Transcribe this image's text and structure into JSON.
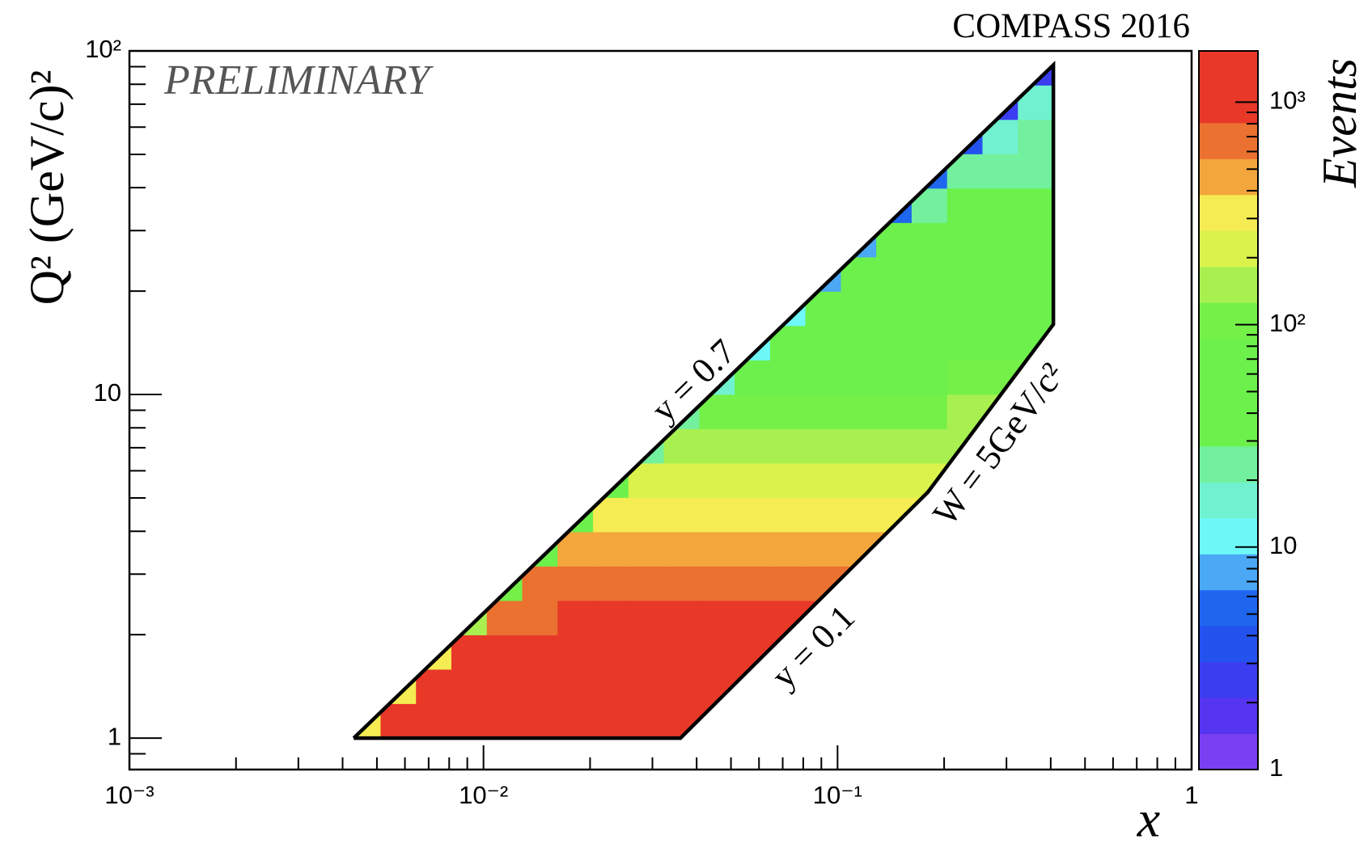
{
  "chart_data": {
    "type": "heatmap",
    "title": "COMPASS 2016",
    "watermark": "PRELIMINARY",
    "x_label": "x",
    "y_label": "Q² (GeV/c)²",
    "colorbar_label": "Events",
    "annotations": [
      "y = 0.7",
      "y = 0.1",
      "W = 5GeV/c²"
    ],
    "xlog": true,
    "ylog": true,
    "zlog": true,
    "xlim": [
      0.001,
      1
    ],
    "ylim": [
      0.81,
      100
    ],
    "zlim": [
      1,
      1700
    ],
    "xticks": [
      {
        "value": 0.001,
        "label": "10⁻³"
      },
      {
        "value": 0.01,
        "label": "10⁻²"
      },
      {
        "value": 0.1,
        "label": "10⁻¹"
      },
      1
    ],
    "yticks": [
      1,
      10,
      {
        "value": 100,
        "label": "10²"
      }
    ],
    "zticks": [
      1,
      10,
      {
        "value": 100,
        "label": "10²"
      },
      {
        "value": 1000,
        "label": "10³"
      }
    ],
    "xminor": [
      0.002,
      0.003,
      0.004,
      0.005,
      0.006,
      0.007,
      0.008,
      0.009,
      0.02,
      0.03,
      0.04,
      0.05,
      0.06,
      0.07,
      0.08,
      0.09,
      0.2,
      0.3,
      0.4,
      0.5,
      0.6,
      0.7,
      0.8,
      0.9
    ],
    "yminor": [
      0.9,
      2,
      3,
      4,
      5,
      6,
      7,
      8,
      9,
      20,
      30,
      40,
      50,
      60,
      70,
      80,
      90
    ],
    "zminor": [
      2,
      3,
      4,
      5,
      6,
      7,
      8,
      9,
      20,
      30,
      40,
      50,
      60,
      70,
      80,
      90,
      200,
      300,
      400,
      500,
      600,
      700,
      800,
      900
    ],
    "palette": [
      "#7b3ff2",
      "#5535f0",
      "#3a3df0",
      "#2452ee",
      "#1e66ee",
      "#4aa8f4",
      "#6ef8f8",
      "#70f2d0",
      "#72f09e",
      "#6cf04c",
      "#6cf04c",
      "#6cf04c",
      "#74f048",
      "#a8f050",
      "#daf24c",
      "#f4ec52",
      "#f2a63c",
      "#eb7130",
      "#e73828",
      "#e73828"
    ],
    "xbins": [
      0.004074,
      0.005129,
      0.006457,
      0.008128,
      0.010233,
      0.012882,
      0.016218,
      0.020417,
      0.025704,
      0.032359,
      0.040738,
      0.051286,
      0.064565,
      0.081283,
      0.102329,
      0.128825,
      0.162181,
      0.204174,
      0.25704,
      0.323594,
      0.40738
    ],
    "ybins": [
      1,
      1.2589,
      1.5849,
      1.9953,
      2.5119,
      3.1623,
      3.9811,
      5.0119,
      6.3096,
      7.9433,
      10,
      12.589,
      15.849,
      19.953,
      25.119,
      31.623,
      39.811,
      50.119,
      63.096,
      79.433,
      100
    ],
    "z": [
      [
        280,
        1400,
        1400,
        1400,
        1400,
        1400,
        1400,
        1400,
        1400,
        1400,
        1400,
        null,
        null,
        null,
        null,
        null,
        null,
        null,
        null,
        null
      ],
      [
        null,
        280,
        1400,
        1400,
        1400,
        1400,
        1400,
        1400,
        1400,
        1400,
        1400,
        1400,
        null,
        null,
        null,
        null,
        null,
        null,
        null,
        null
      ],
      [
        null,
        null,
        280,
        1400,
        1400,
        1400,
        1400,
        1400,
        1400,
        1400,
        1400,
        1400,
        1400,
        null,
        null,
        null,
        null,
        null,
        null,
        null
      ],
      [
        null,
        null,
        null,
        150,
        780,
        800,
        1400,
        1400,
        1400,
        1400,
        1400,
        1400,
        1400,
        1400,
        null,
        null,
        null,
        null,
        null,
        null
      ],
      [
        null,
        null,
        null,
        null,
        110,
        560,
        570,
        590,
        610,
        630,
        650,
        670,
        680,
        700,
        730,
        null,
        null,
        null,
        null,
        null
      ],
      [
        null,
        null,
        null,
        null,
        null,
        77,
        400,
        410,
        420,
        430,
        450,
        460,
        470,
        490,
        500,
        520,
        null,
        null,
        null,
        null
      ],
      [
        null,
        null,
        null,
        null,
        null,
        null,
        55,
        280,
        290,
        300,
        310,
        320,
        330,
        340,
        350,
        360,
        370,
        null,
        null,
        null
      ],
      [
        null,
        null,
        null,
        null,
        null,
        null,
        null,
        39,
        200,
        210,
        210,
        220,
        230,
        230,
        240,
        250,
        250,
        260,
        null,
        null
      ],
      [
        null,
        null,
        null,
        null,
        null,
        null,
        null,
        null,
        28,
        140,
        150,
        150,
        160,
        160,
        170,
        170,
        180,
        180,
        null,
        null
      ],
      [
        null,
        null,
        null,
        null,
        null,
        null,
        null,
        null,
        null,
        20,
        100,
        100,
        110,
        110,
        120,
        120,
        120,
        130,
        130,
        null
      ],
      [
        null,
        null,
        null,
        null,
        null,
        null,
        null,
        null,
        null,
        null,
        14,
        73,
        75,
        77,
        80,
        82,
        84,
        87,
        89,
        92
      ],
      [
        null,
        null,
        null,
        null,
        null,
        null,
        null,
        null,
        null,
        null,
        null,
        12,
        60,
        62,
        63,
        63,
        65,
        65,
        67,
        68
      ],
      [
        null,
        null,
        null,
        null,
        null,
        null,
        null,
        null,
        null,
        null,
        null,
        null,
        10,
        50,
        51,
        52,
        52,
        54,
        54,
        55
      ],
      [
        null,
        null,
        null,
        null,
        null,
        null,
        null,
        null,
        null,
        null,
        null,
        null,
        null,
        8,
        41,
        42,
        43,
        43,
        44,
        45
      ],
      [
        null,
        null,
        null,
        null,
        null,
        null,
        null,
        null,
        null,
        null,
        null,
        null,
        null,
        null,
        7,
        34,
        34,
        35,
        36,
        36
      ],
      [
        null,
        null,
        null,
        null,
        null,
        null,
        null,
        null,
        null,
        null,
        null,
        null,
        null,
        null,
        null,
        5,
        28,
        29,
        29,
        30
      ],
      [
        null,
        null,
        null,
        null,
        null,
        null,
        null,
        null,
        null,
        null,
        null,
        null,
        null,
        null,
        null,
        null,
        5,
        23,
        24,
        24
      ],
      [
        null,
        null,
        null,
        null,
        null,
        null,
        null,
        null,
        null,
        null,
        null,
        null,
        null,
        null,
        null,
        null,
        null,
        4,
        19,
        20
      ],
      [
        null,
        null,
        null,
        null,
        null,
        null,
        null,
        null,
        null,
        null,
        null,
        null,
        null,
        null,
        null,
        null,
        null,
        null,
        3,
        16
      ],
      [
        null,
        null,
        null,
        null,
        null,
        null,
        null,
        null,
        null,
        null,
        null,
        null,
        null,
        null,
        null,
        null,
        null,
        null,
        null,
        3
      ]
    ],
    "boundary": {
      "x": [
        0.0043,
        0.407,
        0.407,
        0.18,
        0.036,
        0.0043
      ],
      "y": [
        1,
        91,
        16,
        5.2,
        1,
        1
      ],
      "color": "#000000"
    }
  }
}
